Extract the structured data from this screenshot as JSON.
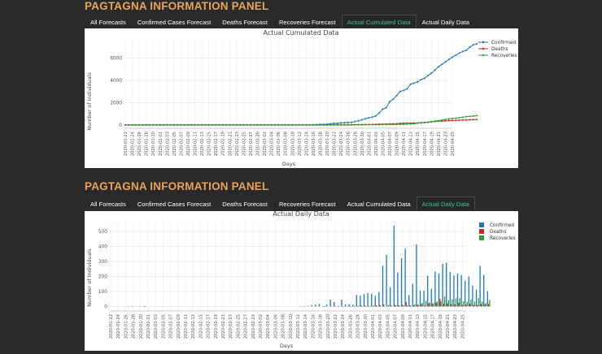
{
  "panels": [
    {
      "title": "PAGTAGNA INFORMATION PANEL",
      "tabs": [
        "All Forecasts",
        "Confirmed Cases Forecast",
        "Deaths Forecast",
        "Recoveries Forecast",
        "Actual Cumulated Data",
        "Actual Daily Data"
      ],
      "active_tab": 4
    },
    {
      "title": "PAGTAGNA INFORMATION PANEL",
      "tabs": [
        "All Forecasts",
        "Confirmed Cases Forecast",
        "Deaths Forecast",
        "Recoveries Forecast",
        "Actual Cumulated Data",
        "Actual Daily Data"
      ],
      "active_tab": 5
    }
  ],
  "chart_data": [
    {
      "type": "line",
      "title": "Actual Cumulated Data",
      "xlabel": "Days",
      "ylabel": "Number of Individuals",
      "x_start": "2020-01-22",
      "x_end": "2020-04-25",
      "x_tick_labels": [
        "2020-01-22",
        "2020-01-24",
        "2020-01-26",
        "2020-01-28",
        "2020-01-30",
        "2020-02-01",
        "2020-02-03",
        "2020-02-05",
        "2020-02-07",
        "2020-02-09",
        "2020-02-11",
        "2020-02-13",
        "2020-02-15",
        "2020-02-17",
        "2020-02-19",
        "2020-02-21",
        "2020-02-23",
        "2020-02-25",
        "2020-02-27",
        "2020-02-29",
        "2020-03-02",
        "2020-03-04",
        "2020-03-06",
        "2020-03-08",
        "2020-03-10",
        "2020-03-12",
        "2020-03-14",
        "2020-03-16",
        "2020-03-18",
        "2020-03-20",
        "2020-03-22",
        "2020-03-24",
        "2020-03-26",
        "2020-03-28",
        "2020-03-30",
        "2020-04-01",
        "2020-04-03",
        "2020-04-05",
        "2020-04-07",
        "2020-04-09",
        "2020-04-11",
        "2020-04-13",
        "2020-04-15",
        "2020-04-17",
        "2020-04-19",
        "2020-04-21",
        "2020-04-23",
        "2020-04-25"
      ],
      "y_ticks": [
        0,
        2000,
        4000,
        6000
      ],
      "ylim": [
        -300,
        7800
      ],
      "legend_position": "top-right",
      "grid": true,
      "series": [
        {
          "name": "Confirmed",
          "color": "#1f77b4",
          "values": [
            0,
            0,
            0,
            0,
            0,
            1,
            2,
            2,
            3,
            3,
            3,
            3,
            3,
            3,
            3,
            3,
            3,
            3,
            3,
            3,
            3,
            3,
            3,
            3,
            3,
            3,
            3,
            3,
            3,
            3,
            3,
            3,
            3,
            3,
            3,
            3,
            3,
            3,
            3,
            3,
            3,
            3,
            3,
            3,
            3,
            3,
            3,
            3,
            3,
            3,
            3,
            5,
            6,
            10,
            20,
            33,
            49,
            52,
            64,
            111,
            140,
            142,
            187,
            202,
            217,
            230,
            307,
            380,
            462,
            552,
            636,
            707,
            803,
            1075,
            1418,
            1546,
            2084,
            2311,
            2633,
            3018,
            3094,
            3246,
            3660,
            3764,
            3870,
            4076,
            4195,
            4428,
            4648,
            4932,
            5223,
            5453,
            5660,
            5878,
            6087,
            6259,
            6459,
            6599,
            6710,
            6981,
            7192,
            7294
          ]
        },
        {
          "name": "Deaths",
          "color": "#d62728",
          "values": [
            0,
            0,
            0,
            0,
            0,
            0,
            0,
            0,
            0,
            1,
            1,
            1,
            1,
            1,
            1,
            1,
            1,
            1,
            1,
            1,
            1,
            1,
            1,
            1,
            1,
            1,
            1,
            1,
            1,
            1,
            1,
            1,
            1,
            1,
            1,
            1,
            1,
            1,
            1,
            1,
            1,
            1,
            1,
            1,
            1,
            1,
            1,
            1,
            1,
            1,
            1,
            1,
            1,
            1,
            1,
            1,
            1,
            2,
            2,
            5,
            8,
            11,
            12,
            12,
            14,
            17,
            19,
            25,
            31,
            35,
            38,
            45,
            54,
            68,
            71,
            78,
            88,
            96,
            107,
            136,
            144,
            152,
            163,
            177,
            182,
            203,
            221,
            247,
            297,
            315,
            335,
            349,
            362,
            387,
            397,
            409,
            428,
            437,
            446,
            462,
            477,
            494
          ]
        },
        {
          "name": "Recoveries",
          "color": "#2ca02c",
          "values": [
            0,
            0,
            0,
            0,
            0,
            0,
            0,
            0,
            0,
            1,
            1,
            1,
            1,
            1,
            1,
            1,
            1,
            1,
            1,
            1,
            1,
            1,
            1,
            1,
            1,
            1,
            1,
            1,
            1,
            1,
            1,
            1,
            1,
            1,
            1,
            1,
            1,
            1,
            1,
            1,
            1,
            1,
            1,
            1,
            1,
            1,
            1,
            1,
            1,
            1,
            1,
            1,
            1,
            1,
            1,
            1,
            1,
            2,
            2,
            2,
            2,
            2,
            3,
            4,
            4,
            8,
            13,
            16,
            17,
            20,
            26,
            28,
            31,
            31,
            42,
            42,
            49,
            51,
            57,
            64,
            69,
            84,
            96,
            119,
            157,
            184,
            207,
            241,
            275,
            340,
            382,
            431,
            486,
            542,
            577,
            609,
            656,
            688,
            744,
            777,
            799,
            842
          ]
        }
      ]
    },
    {
      "type": "bar",
      "title": "Actual Daily Data",
      "xlabel": "Days",
      "ylabel": "Number of Individuals",
      "x_start": "2020-01-22",
      "x_end": "2020-04-26",
      "x_tick_labels": [
        "2020-01-22",
        "2020-01-24",
        "2020-01-26",
        "2020-01-28",
        "2020-01-30",
        "2020-02-01",
        "2020-02-03",
        "2020-02-05",
        "2020-02-07",
        "2020-02-09",
        "2020-02-11",
        "2020-02-13",
        "2020-02-15",
        "2020-02-17",
        "2020-02-19",
        "2020-02-21",
        "2020-02-23",
        "2020-02-25",
        "2020-02-27",
        "2020-02-29",
        "2020-03-02",
        "2020-03-04",
        "2020-03-06",
        "2020-03-08",
        "2020-03-10",
        "2020-03-12",
        "2020-03-14",
        "2020-03-16",
        "2020-03-18",
        "2020-03-20",
        "2020-03-22",
        "2020-03-24",
        "2020-03-26",
        "2020-03-28",
        "2020-03-30",
        "2020-04-01",
        "2020-04-03",
        "2020-04-05",
        "2020-04-07",
        "2020-04-09",
        "2020-04-11",
        "2020-04-13",
        "2020-04-15",
        "2020-04-17",
        "2020-04-19",
        "2020-04-21",
        "2020-04-23",
        "2020-04-25"
      ],
      "y_ticks": [
        0,
        100,
        200,
        300,
        400,
        500
      ],
      "ylim": [
        -30,
        560
      ],
      "legend_position": "top-right",
      "grid": true,
      "series": [
        {
          "name": "Confirmed",
          "color": "#1f77b4",
          "values": [
            0,
            0,
            0,
            0,
            0,
            1,
            1,
            0,
            1,
            0,
            0,
            0,
            0,
            0,
            0,
            0,
            0,
            0,
            0,
            0,
            0,
            0,
            0,
            0,
            0,
            0,
            0,
            0,
            0,
            0,
            0,
            0,
            0,
            0,
            0,
            0,
            0,
            0,
            0,
            0,
            0,
            0,
            0,
            0,
            0,
            0,
            0,
            0,
            0,
            0,
            0,
            2,
            1,
            4,
            10,
            13,
            16,
            3,
            12,
            47,
            29,
            2,
            45,
            15,
            15,
            13,
            77,
            73,
            82,
            90,
            84,
            71,
            96,
            272,
            343,
            128,
            538,
            227,
            322,
            385,
            76,
            152,
            414,
            104,
            106,
            206,
            119,
            233,
            220,
            284,
            291,
            230,
            207,
            218,
            209,
            172,
            200,
            140,
            111,
            271,
            211,
            102
          ]
        },
        {
          "name": "Deaths",
          "color": "#d62728",
          "values": [
            0,
            0,
            0,
            0,
            0,
            0,
            0,
            0,
            0,
            1,
            0,
            0,
            0,
            0,
            0,
            0,
            0,
            0,
            0,
            0,
            0,
            0,
            0,
            0,
            0,
            0,
            0,
            0,
            0,
            0,
            0,
            0,
            0,
            0,
            0,
            0,
            0,
            0,
            0,
            0,
            0,
            0,
            0,
            0,
            0,
            0,
            0,
            0,
            0,
            0,
            0,
            0,
            0,
            0,
            0,
            0,
            0,
            1,
            0,
            3,
            3,
            3,
            1,
            0,
            2,
            3,
            2,
            6,
            6,
            4,
            3,
            7,
            9,
            14,
            3,
            7,
            10,
            8,
            11,
            29,
            8,
            8,
            11,
            14,
            5,
            21,
            18,
            26,
            50,
            18,
            20,
            14,
            13,
            25,
            10,
            12,
            19,
            9,
            9,
            16,
            15,
            17
          ]
        },
        {
          "name": "Recoveries",
          "color": "#2ca02c",
          "values": [
            0,
            0,
            0,
            0,
            0,
            0,
            0,
            0,
            0,
            1,
            0,
            0,
            0,
            0,
            0,
            0,
            0,
            0,
            0,
            0,
            0,
            0,
            0,
            0,
            0,
            0,
            0,
            0,
            0,
            0,
            0,
            0,
            0,
            0,
            0,
            0,
            0,
            0,
            0,
            0,
            0,
            0,
            0,
            0,
            0,
            0,
            0,
            0,
            0,
            0,
            0,
            0,
            0,
            0,
            0,
            0,
            0,
            1,
            0,
            0,
            0,
            0,
            1,
            1,
            0,
            4,
            5,
            3,
            1,
            3,
            6,
            2,
            3,
            0,
            11,
            0,
            7,
            2,
            6,
            7,
            5,
            15,
            12,
            23,
            38,
            27,
            23,
            34,
            34,
            65,
            42,
            49,
            55,
            56,
            35,
            32,
            47,
            32,
            56,
            33,
            22,
            43
          ]
        }
      ]
    }
  ]
}
